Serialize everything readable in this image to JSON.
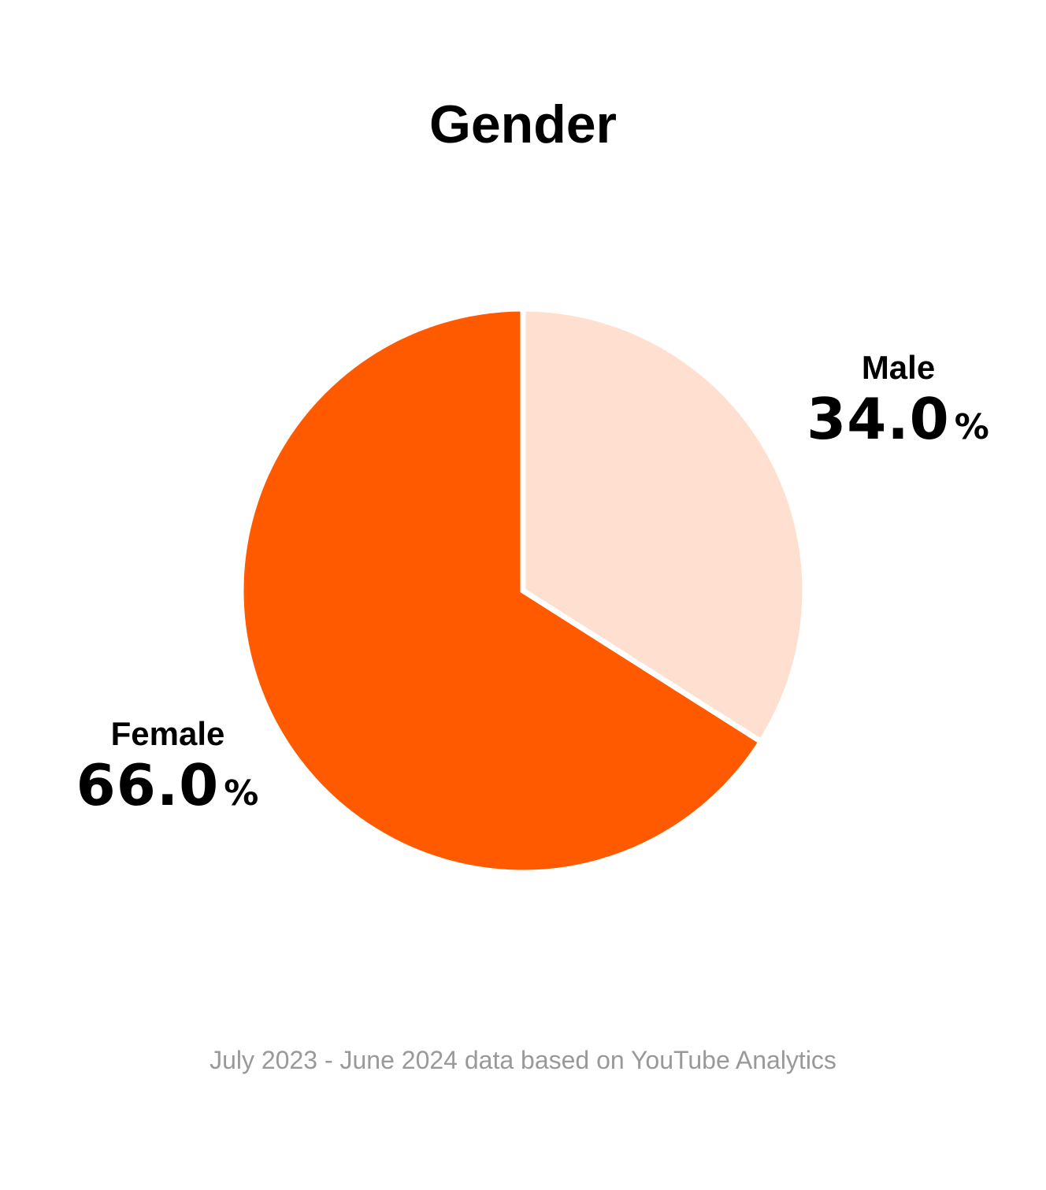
{
  "chart_data": {
    "type": "pie",
    "title": "Gender",
    "slices": [
      {
        "label": "Male",
        "value": 34.0,
        "display": "34.0",
        "unit": "%",
        "color": "#FFE0D0"
      },
      {
        "label": "Female",
        "value": 66.0,
        "display": "66.0",
        "unit": "%",
        "color": "#FF5A00"
      }
    ],
    "start_angle": "12 o'clock",
    "direction": "clockwise",
    "slice_border_color": "#FFFFFF"
  },
  "footer": {
    "source_note": "July 2023 - June 2024 data based on YouTube Analytics"
  }
}
